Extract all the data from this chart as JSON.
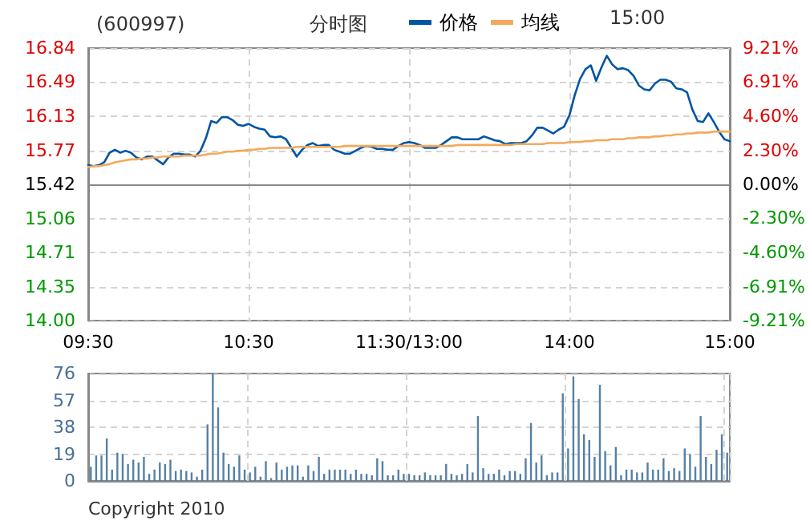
{
  "chart_data": [
    {
      "type": "line",
      "title": "分时图",
      "subtitle": "(600997)",
      "annotations": [
        "15:00"
      ],
      "categories": [
        "09:30",
        null,
        null,
        null,
        null,
        null,
        null,
        null,
        null,
        null,
        null,
        null,
        null,
        null,
        null,
        null,
        null,
        null,
        null,
        null,
        null,
        null,
        null,
        null,
        null,
        null,
        null,
        null,
        null,
        null,
        "10:30",
        null,
        null,
        null,
        null,
        null,
        null,
        null,
        null,
        null,
        null,
        null,
        null,
        null,
        null,
        null,
        null,
        null,
        null,
        null,
        null,
        null,
        null,
        null,
        null,
        null,
        null,
        null,
        null,
        null,
        "11:30/13:00",
        null,
        null,
        null,
        null,
        null,
        null,
        null,
        null,
        null,
        null,
        null,
        null,
        null,
        null,
        null,
        null,
        null,
        null,
        null,
        null,
        null,
        null,
        null,
        null,
        null,
        null,
        null,
        null,
        null,
        "14:00",
        null,
        null,
        null,
        null,
        null,
        null,
        null,
        null,
        null,
        null,
        null,
        null,
        null,
        null,
        null,
        null,
        null,
        null,
        null,
        null,
        null,
        null,
        null,
        null,
        null,
        null,
        null,
        null,
        null,
        "15:00"
      ],
      "ylim": [
        14,
        16.84
      ],
      "yticks": [
        {
          "value": 14,
          "label": "14.00"
        },
        {
          "value": 14.35,
          "label": "14.35"
        },
        {
          "value": 14.71,
          "label": "14.71"
        },
        {
          "value": 15.06,
          "label": "15.06"
        },
        {
          "value": 15.42,
          "label": "15.42"
        },
        {
          "value": 15.77,
          "label": "15.77"
        },
        {
          "value": 16.13,
          "label": "16.13"
        },
        {
          "value": 16.49,
          "label": "16.49"
        },
        {
          "value": 16.84,
          "label": "16.84"
        }
      ],
      "y2lim": [
        -9.21,
        9.21
      ],
      "y2ticks": [
        {
          "value": -9.21,
          "label": "-9.21%"
        },
        {
          "value": -6.91,
          "label": "-6.91%"
        },
        {
          "value": -4.6,
          "label": "-4.60%"
        },
        {
          "value": -2.3,
          "label": "-2.30%"
        },
        {
          "value": 0,
          "label": "0.00%"
        },
        {
          "value": 2.3,
          "label": "2.30%"
        },
        {
          "value": 4.6,
          "label": "4.60%"
        },
        {
          "value": 6.91,
          "label": "6.91%"
        },
        {
          "value": 9.21,
          "label": "9.21%"
        }
      ],
      "grid": true,
      "legend": "top",
      "marker": "none",
      "line_style": "solid",
      "series": [
        {
          "name": "价格",
          "color": "#0055a5",
          "values": [
            15.62,
            15.61,
            15.62,
            15.65,
            15.75,
            15.78,
            15.75,
            15.77,
            15.75,
            15.7,
            15.68,
            15.71,
            15.71,
            15.67,
            15.63,
            15.7,
            15.74,
            15.74,
            15.73,
            15.73,
            15.71,
            15.77,
            15.9,
            16.08,
            16.06,
            16.12,
            16.12,
            16.09,
            16.04,
            16.03,
            16.05,
            16.02,
            16.0,
            15.99,
            15.92,
            15.91,
            15.92,
            15.89,
            15.8,
            15.71,
            15.78,
            15.83,
            15.85,
            15.82,
            15.83,
            15.83,
            15.78,
            15.76,
            15.74,
            15.74,
            15.77,
            15.8,
            15.82,
            15.81,
            15.79,
            15.79,
            15.78,
            15.78,
            15.82,
            15.85,
            15.86,
            15.85,
            15.83,
            15.8,
            15.8,
            15.8,
            15.83,
            15.87,
            15.91,
            15.91,
            15.89,
            15.89,
            15.89,
            15.89,
            15.92,
            15.9,
            15.88,
            15.87,
            15.84,
            15.85,
            15.85,
            15.85,
            15.87,
            15.93,
            16.01,
            16.01,
            15.98,
            15.95,
            15.99,
            16.02,
            16.14,
            16.35,
            16.52,
            16.62,
            16.66,
            16.5,
            16.64,
            16.76,
            16.67,
            16.62,
            16.63,
            16.61,
            16.55,
            16.45,
            16.41,
            16.4,
            16.47,
            16.51,
            16.51,
            16.49,
            16.42,
            16.41,
            16.38,
            16.2,
            16.08,
            16.07,
            16.16,
            16.07,
            15.97,
            15.89,
            15.87
          ]
        },
        {
          "name": "均线",
          "color": "#f5a95a",
          "values": [
            15.6,
            15.61,
            15.61,
            15.62,
            15.63,
            15.65,
            15.66,
            15.67,
            15.68,
            15.68,
            15.69,
            15.69,
            15.7,
            15.7,
            15.71,
            15.71,
            15.71,
            15.71,
            15.72,
            15.72,
            15.72,
            15.72,
            15.73,
            15.74,
            15.74,
            15.75,
            15.76,
            15.76,
            15.77,
            15.77,
            15.78,
            15.78,
            15.79,
            15.79,
            15.8,
            15.8,
            15.8,
            15.8,
            15.8,
            15.81,
            15.81,
            15.81,
            15.81,
            15.81,
            15.81,
            15.81,
            15.81,
            15.81,
            15.82,
            15.82,
            15.82,
            15.82,
            15.82,
            15.82,
            15.82,
            15.82,
            15.82,
            15.82,
            15.82,
            15.82,
            15.82,
            15.82,
            15.82,
            15.82,
            15.82,
            15.82,
            15.82,
            15.82,
            15.82,
            15.83,
            15.83,
            15.83,
            15.83,
            15.83,
            15.83,
            15.83,
            15.83,
            15.83,
            15.83,
            15.83,
            15.84,
            15.84,
            15.84,
            15.84,
            15.84,
            15.84,
            15.85,
            15.85,
            15.85,
            15.85,
            15.86,
            15.86,
            15.86,
            15.87,
            15.87,
            15.88,
            15.88,
            15.88,
            15.89,
            15.89,
            15.89,
            15.9,
            15.9,
            15.91,
            15.91,
            15.91,
            15.92,
            15.92,
            15.93,
            15.93,
            15.94,
            15.94,
            15.95,
            15.95,
            15.96,
            15.96,
            15.96,
            15.97,
            15.97,
            15.97,
            15.97
          ]
        }
      ]
    },
    {
      "type": "bar",
      "annotations": [
        "Copyright 2010"
      ],
      "categories": [
        null,
        null,
        null,
        null,
        null,
        null,
        null,
        null,
        null,
        null,
        null,
        null,
        null,
        null,
        null,
        null,
        null,
        null,
        null,
        null,
        null,
        null,
        null,
        null,
        null,
        null,
        null,
        null,
        null,
        null,
        null,
        null,
        null,
        null,
        null,
        null,
        null,
        null,
        null,
        null,
        null,
        null,
        null,
        null,
        null,
        null,
        null,
        null,
        null,
        null,
        null,
        null,
        null,
        null,
        null,
        null,
        null,
        null,
        null,
        null,
        null,
        null,
        null,
        null,
        null,
        null,
        null,
        null,
        null,
        null,
        null,
        null,
        null,
        null,
        null,
        null,
        null,
        null,
        null,
        null,
        null,
        null,
        null,
        null,
        null,
        null,
        null,
        null,
        null,
        null,
        null,
        null,
        null,
        null,
        null,
        null,
        null,
        null,
        null,
        null,
        null,
        null,
        null,
        null,
        null,
        null,
        null,
        null,
        null,
        null,
        null,
        null,
        null,
        null,
        null,
        null,
        null,
        null,
        null,
        null,
        null
      ],
      "ylim": [
        0,
        76
      ],
      "yticks": [
        0,
        19,
        38,
        57,
        76
      ],
      "grid": true,
      "series": [
        {
          "color": "#5580a6",
          "values": [
            10,
            18,
            18,
            30,
            8,
            20,
            19,
            12,
            15,
            13,
            17,
            5,
            8,
            13,
            12,
            15,
            7,
            8,
            7,
            6,
            3,
            8,
            40,
            76,
            52,
            20,
            12,
            10,
            18,
            8,
            6,
            10,
            3,
            14,
            2,
            13,
            8,
            10,
            11,
            11,
            3,
            11,
            7,
            17,
            5,
            8,
            8,
            8,
            8,
            5,
            8,
            5,
            5,
            4,
            16,
            14,
            4,
            4,
            8,
            5,
            5,
            4,
            4,
            6,
            4,
            4,
            4,
            12,
            5,
            4,
            5,
            12,
            6,
            46,
            9,
            5,
            5,
            8,
            4,
            7,
            7,
            5,
            16,
            41,
            13,
            18,
            4,
            6,
            6,
            62,
            23,
            74,
            58,
            33,
            29,
            17,
            68,
            21,
            11,
            24,
            4,
            8,
            8,
            6,
            6,
            13,
            8,
            8,
            16,
            7,
            9,
            7,
            23,
            19,
            10,
            46,
            17,
            12,
            22,
            33,
            20
          ]
        }
      ]
    }
  ]
}
